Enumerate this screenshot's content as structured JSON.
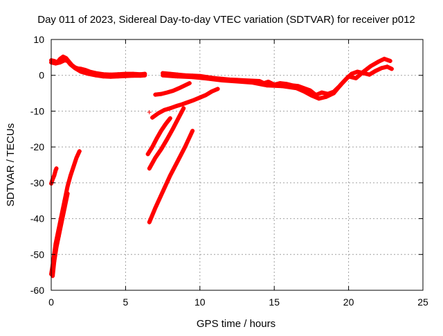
{
  "chart_data": {
    "type": "scatter",
    "title": "Day 011 of 2023, Sidereal Day-to-day VTEC variation (SDTVAR) for receiver p012",
    "xlabel": "GPS time / hours",
    "ylabel": "SDTVAR / TECUs",
    "xlim": [
      0,
      25
    ],
    "ylim": [
      -60,
      10
    ],
    "xticks": [
      0,
      5,
      10,
      15,
      20,
      25
    ],
    "yticks": [
      -60,
      -50,
      -40,
      -30,
      -20,
      -10,
      0,
      10
    ],
    "grid": true,
    "marker": "+",
    "colors": {
      "series": "#ff0000",
      "grid": "#a0a0a0",
      "axis": "#000000"
    },
    "series": [
      {
        "points": [
          [
            0,
            4.2
          ],
          [
            0.2,
            4.0
          ],
          [
            0.4,
            3.6
          ],
          [
            0.6,
            4.6
          ],
          [
            0.8,
            5.2
          ],
          [
            1.0,
            4.8
          ],
          [
            1.2,
            3.8
          ],
          [
            1.4,
            2.8
          ],
          [
            1.6,
            2.2
          ],
          [
            1.8,
            1.9
          ],
          [
            2.0,
            1.8
          ],
          [
            2.3,
            1.5
          ],
          [
            2.6,
            1.0
          ],
          [
            3.0,
            0.6
          ],
          [
            3.5,
            0.3
          ],
          [
            4.0,
            0.2
          ],
          [
            4.5,
            0.3
          ],
          [
            5.0,
            0.4
          ],
          [
            5.5,
            0.4
          ],
          [
            6.0,
            0.3
          ],
          [
            6.3,
            0.4
          ]
        ]
      },
      {
        "points": [
          [
            0,
            3.6
          ],
          [
            0.3,
            3.3
          ],
          [
            0.6,
            3.6
          ],
          [
            0.9,
            4.2
          ],
          [
            1.1,
            4.0
          ],
          [
            1.3,
            3.0
          ],
          [
            1.6,
            2.0
          ],
          [
            2.0,
            1.0
          ],
          [
            2.5,
            0.4
          ],
          [
            3.0,
            0.0
          ],
          [
            3.5,
            -0.3
          ],
          [
            4.0,
            -0.4
          ],
          [
            4.5,
            -0.3
          ],
          [
            5.0,
            -0.2
          ],
          [
            5.5,
            -0.1
          ],
          [
            6.0,
            -0.1
          ],
          [
            6.3,
            0.0
          ]
        ]
      },
      {
        "points": [
          [
            7.5,
            0.6
          ],
          [
            8.0,
            0.4
          ],
          [
            8.5,
            0.2
          ],
          [
            9.0,
            0.0
          ],
          [
            9.5,
            -0.1
          ],
          [
            10.0,
            -0.2
          ],
          [
            10.5,
            -0.5
          ],
          [
            11.0,
            -0.8
          ],
          [
            11.5,
            -1.0
          ],
          [
            12.0,
            -1.2
          ],
          [
            12.5,
            -1.3
          ],
          [
            13.0,
            -1.4
          ],
          [
            13.5,
            -1.5
          ],
          [
            14.0,
            -1.6
          ],
          [
            14.3,
            -2.2
          ],
          [
            14.6,
            -1.8
          ],
          [
            15.0,
            -2.6
          ],
          [
            15.4,
            -2.2
          ],
          [
            15.8,
            -2.4
          ],
          [
            16.2,
            -2.8
          ],
          [
            16.6,
            -3.0
          ],
          [
            17.0,
            -3.6
          ],
          [
            17.4,
            -4.2
          ],
          [
            17.8,
            -5.5
          ],
          [
            18.2,
            -4.8
          ],
          [
            18.6,
            -5.2
          ],
          [
            19.0,
            -4.6
          ],
          [
            19.4,
            -3.0
          ],
          [
            19.8,
            -1.2
          ],
          [
            20.2,
            0.4
          ],
          [
            20.6,
            1.0
          ],
          [
            21.0,
            0.6
          ],
          [
            21.4,
            0.2
          ],
          [
            21.8,
            1.2
          ],
          [
            22.2,
            2.0
          ],
          [
            22.6,
            2.4
          ],
          [
            22.9,
            1.8
          ]
        ]
      },
      {
        "points": [
          [
            7.5,
            0.0
          ],
          [
            8.5,
            -0.3
          ],
          [
            9.5,
            -0.5
          ],
          [
            10.5,
            -0.9
          ],
          [
            11.5,
            -1.4
          ],
          [
            12.5,
            -1.7
          ],
          [
            13.5,
            -2.0
          ],
          [
            14.5,
            -2.8
          ],
          [
            15.5,
            -3.0
          ],
          [
            16.5,
            -3.6
          ],
          [
            17.0,
            -4.5
          ],
          [
            17.5,
            -5.6
          ],
          [
            18.0,
            -6.5
          ],
          [
            18.5,
            -6.0
          ],
          [
            19.0,
            -5.0
          ],
          [
            19.5,
            -2.5
          ],
          [
            20.0,
            -0.3
          ],
          [
            20.5,
            -0.8
          ],
          [
            21.0,
            1.0
          ],
          [
            21.5,
            2.6
          ],
          [
            22.0,
            3.8
          ],
          [
            22.4,
            4.6
          ],
          [
            22.8,
            4.0
          ]
        ]
      },
      {
        "points": [
          [
            7.0,
            -5.4
          ],
          [
            7.4,
            -5.2
          ],
          [
            7.8,
            -4.8
          ],
          [
            8.2,
            -4.3
          ],
          [
            8.6,
            -3.6
          ],
          [
            9.0,
            -2.8
          ],
          [
            9.3,
            -2.2
          ]
        ]
      },
      {
        "points": [
          [
            6.8,
            -11.8
          ],
          [
            7.2,
            -10.6
          ],
          [
            7.6,
            -9.7
          ],
          [
            8.0,
            -9.2
          ],
          [
            8.4,
            -8.6
          ],
          [
            8.8,
            -8.1
          ],
          [
            9.2,
            -7.5
          ],
          [
            9.6,
            -6.9
          ],
          [
            10.0,
            -6.2
          ],
          [
            10.4,
            -5.5
          ],
          [
            10.8,
            -4.5
          ],
          [
            11.2,
            -3.8
          ]
        ]
      },
      {
        "points": [
          [
            6.6,
            -26.0
          ],
          [
            7.0,
            -23.0
          ],
          [
            7.4,
            -20.6
          ],
          [
            7.8,
            -17.8
          ],
          [
            8.2,
            -14.8
          ],
          [
            8.6,
            -11.6
          ],
          [
            8.9,
            -9.2
          ]
        ]
      },
      {
        "points": [
          [
            6.6,
            -41.0
          ],
          [
            7.0,
            -37.0
          ],
          [
            7.5,
            -32.5
          ],
          [
            8.0,
            -28.0
          ],
          [
            8.5,
            -24.0
          ],
          [
            9.0,
            -20.0
          ],
          [
            9.5,
            -15.5
          ]
        ]
      },
      {
        "points": [
          [
            6.5,
            -22.0
          ],
          [
            6.8,
            -20.0
          ],
          [
            7.1,
            -17.6
          ],
          [
            7.4,
            -15.4
          ],
          [
            7.7,
            -13.6
          ],
          [
            8.0,
            -12.0
          ]
        ]
      },
      {
        "points": [
          [
            6.6,
            -10.3
          ]
        ]
      },
      {
        "points": [
          [
            0.0,
            -30.2
          ],
          [
            0.1,
            -29.0
          ],
          [
            0.2,
            -28.0
          ],
          [
            0.3,
            -26.5
          ],
          [
            0.35,
            -26.0
          ]
        ]
      },
      {
        "points": [
          [
            0.0,
            -55.5
          ],
          [
            0.1,
            -53.0
          ],
          [
            0.2,
            -50.0
          ],
          [
            0.3,
            -47.0
          ],
          [
            0.5,
            -43.0
          ],
          [
            0.7,
            -39.0
          ],
          [
            0.9,
            -35.0
          ],
          [
            1.1,
            -31.0
          ],
          [
            1.3,
            -28.0
          ],
          [
            1.5,
            -25.5
          ],
          [
            1.7,
            -23.0
          ],
          [
            1.9,
            -21.2
          ]
        ]
      },
      {
        "points": [
          [
            0.1,
            -56.0
          ],
          [
            0.2,
            -52.0
          ],
          [
            0.35,
            -48.0
          ],
          [
            0.5,
            -45.0
          ],
          [
            0.7,
            -41.0
          ],
          [
            0.9,
            -37.0
          ],
          [
            1.1,
            -33.0
          ]
        ]
      }
    ]
  }
}
